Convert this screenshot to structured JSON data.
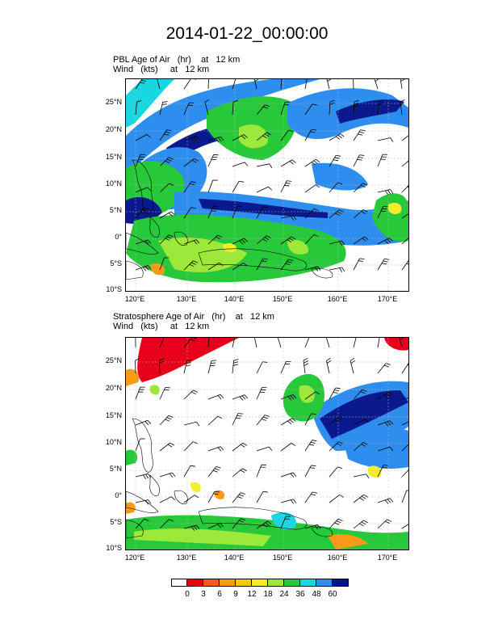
{
  "title": "2014-01-22_00:00:00",
  "panels": [
    {
      "line1": "PBL Age of Air   (hr)    at   12 km",
      "line2": "Wind   (kts)     at   12 km"
    },
    {
      "line1": "Stratosphere Age of Air   (hr)    at   12 km",
      "line2": "Wind   (kts)     at   12 km"
    }
  ],
  "lat_ticks": [
    "25°N",
    "20°N",
    "15°N",
    "10°N",
    "5°N",
    "0°",
    "5°S",
    "10°S"
  ],
  "lon_ticks": [
    "120°E",
    "130°E",
    "140°E",
    "150°E",
    "160°E",
    "170°E"
  ],
  "colorbar": {
    "labels": [
      "0",
      "3",
      "6",
      "9",
      "12",
      "18",
      "24",
      "36",
      "48",
      "60"
    ],
    "colors": [
      "#ffffff",
      "#e8001a",
      "#f45a1a",
      "#fb9a17",
      "#f9c800",
      "#f4ee2a",
      "#9ee83a",
      "#27c83a",
      "#19d6e0",
      "#2d8ef0",
      "#00158c"
    ]
  },
  "colors": {
    "dark_blue": "#0a1a8e",
    "blue": "#2d8ef0",
    "cyan": "#19d6e0",
    "green": "#27c83a",
    "lime": "#9ee83a",
    "yellow": "#f4ee2a",
    "orange": "#fb9a17",
    "red": "#e8001a"
  }
}
